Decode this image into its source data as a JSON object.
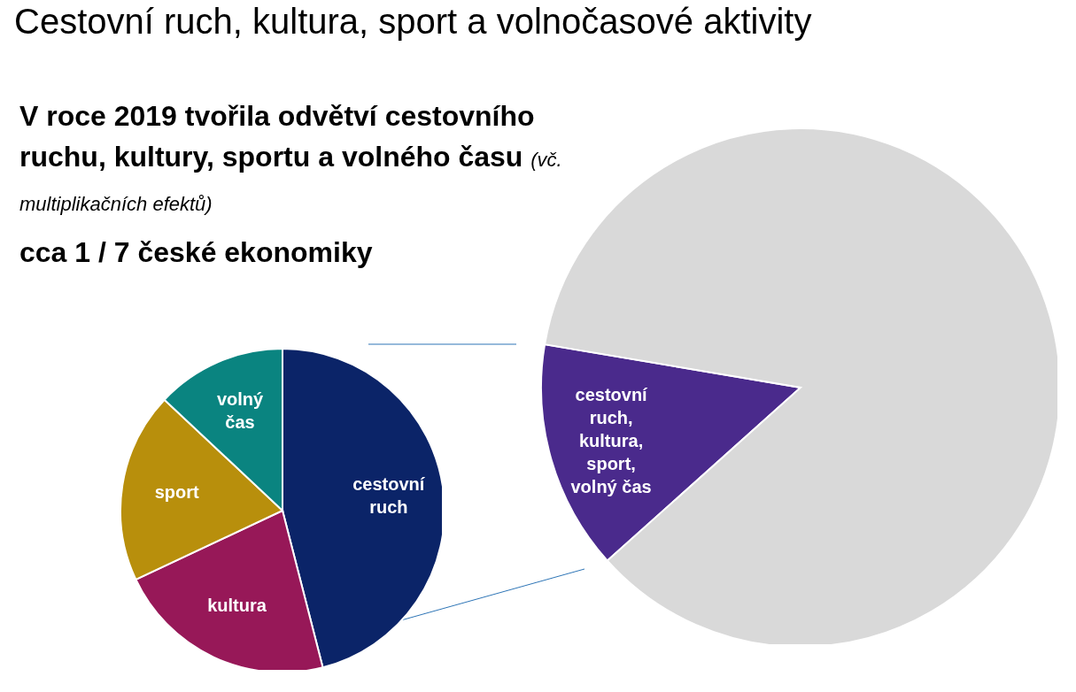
{
  "chart_data": [
    {
      "type": "pie",
      "title": "Cestovní ruch, kultura, sport a volnočasové aktivity",
      "subtitle": "V roce 2019 tvořila odvětví cestovního ruchu, kultury, sportu a volného času",
      "annotations": [
        "(vč. multiplikačních efektů)",
        "cca 1 / 7 české ekonomiky"
      ],
      "categories": [
        "cestovní ruch",
        "kultura",
        "sport",
        "volný čas"
      ],
      "values": [
        46,
        22,
        19,
        13
      ],
      "colors": [
        "#0b2468",
        "#971858",
        "#b88f0c",
        "#0a8480"
      ],
      "legend": false
    },
    {
      "type": "pie",
      "categories": [
        "cestovní ruch, kultura, sport, volný čas",
        null
      ],
      "values": [
        14.3,
        85.7
      ],
      "colors": [
        "#4a2a8c",
        "#d9d9d9"
      ],
      "legend": false
    }
  ]
}
